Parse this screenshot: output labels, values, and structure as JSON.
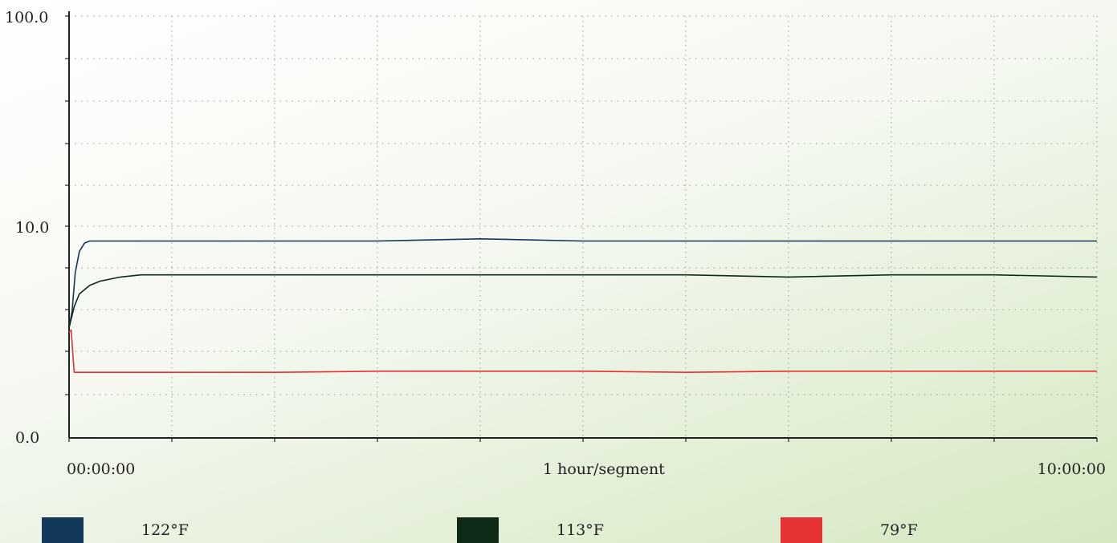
{
  "chart_data": {
    "type": "line",
    "y_scale": "log",
    "ylim": [
      0.0,
      100.0
    ],
    "y_ticks": [
      "100.0",
      "10.0",
      "0.0"
    ],
    "x_ticks": [
      "00:00:00",
      "10:00:00"
    ],
    "xlim": [
      0,
      10
    ],
    "x_unit_label": "1 hour/segment",
    "grid": true,
    "series": [
      {
        "name": "122°F",
        "color": "#12385a",
        "x": [
          0,
          0.03,
          0.06,
          0.1,
          0.15,
          0.2,
          0.3,
          0.5,
          1,
          2,
          3,
          4,
          5,
          6,
          7,
          8,
          9,
          10
        ],
        "values": [
          5.2,
          6.0,
          7.8,
          8.8,
          9.2,
          9.3,
          9.3,
          9.3,
          9.3,
          9.3,
          9.3,
          9.4,
          9.3,
          9.3,
          9.3,
          9.3,
          9.3,
          9.3
        ]
      },
      {
        "name": "113°F",
        "color": "#0f2a17",
        "x": [
          0,
          0.05,
          0.1,
          0.2,
          0.3,
          0.5,
          0.7,
          1,
          2,
          3,
          4,
          5,
          6,
          7,
          8,
          9,
          10
        ],
        "values": [
          5.2,
          6.2,
          6.8,
          7.2,
          7.4,
          7.6,
          7.7,
          7.7,
          7.7,
          7.7,
          7.7,
          7.7,
          7.7,
          7.6,
          7.7,
          7.7,
          7.6
        ]
      },
      {
        "name": "79°F",
        "color": "#e63232",
        "x": [
          0,
          0.02,
          0.05,
          0.2,
          1,
          2,
          3,
          4,
          5,
          6,
          7,
          8,
          9,
          10
        ],
        "values": [
          5.0,
          5.1,
          3.1,
          3.1,
          3.1,
          3.1,
          3.15,
          3.15,
          3.15,
          3.1,
          3.15,
          3.15,
          3.15,
          3.15
        ]
      }
    ]
  }
}
